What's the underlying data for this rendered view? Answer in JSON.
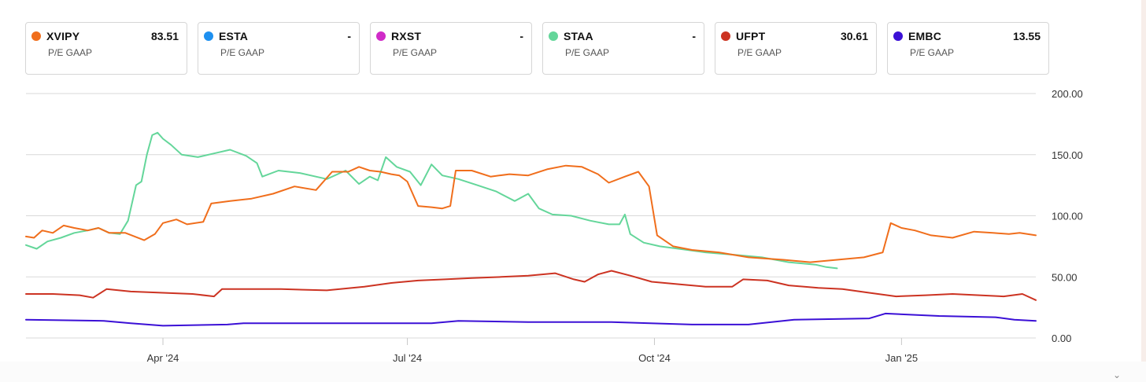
{
  "legend": [
    {
      "ticker": "XVIPY",
      "value": "83.51",
      "metric": "P/E GAAP",
      "color": "#f06e1c"
    },
    {
      "ticker": "ESTA",
      "value": "-",
      "metric": "P/E GAAP",
      "color": "#1e90f0"
    },
    {
      "ticker": "RXST",
      "value": "-",
      "metric": "P/E GAAP",
      "color": "#d02bc8"
    },
    {
      "ticker": "STAA",
      "value": "-",
      "metric": "P/E GAAP",
      "color": "#64d69a"
    },
    {
      "ticker": "UFPT",
      "value": "30.61",
      "metric": "P/E GAAP",
      "color": "#cc3322"
    },
    {
      "ticker": "EMBC",
      "value": "13.55",
      "metric": "P/E GAAP",
      "color": "#3b10d6"
    }
  ],
  "chart_data": {
    "type": "line",
    "x_range": [
      "2024-02-10",
      "2025-02-20"
    ],
    "ylim": [
      0,
      200
    ],
    "y_ticks": [
      "200.00",
      "150.00",
      "100.00",
      "50.00",
      "0.00"
    ],
    "x_ticks": [
      {
        "label": "Apr '24",
        "date": "2024-04-01"
      },
      {
        "label": "Jul '24",
        "date": "2024-07-01"
      },
      {
        "label": "Oct '24",
        "date": "2024-10-01"
      },
      {
        "label": "Jan '25",
        "date": "2025-01-01"
      }
    ],
    "grid": true,
    "series": [
      {
        "name": "STAA",
        "color": "#64d69a",
        "points": [
          [
            "2024-02-10",
            76
          ],
          [
            "2024-02-14",
            73
          ],
          [
            "2024-02-18",
            79
          ],
          [
            "2024-02-23",
            82
          ],
          [
            "2024-02-28",
            86
          ],
          [
            "2024-03-04",
            88
          ],
          [
            "2024-03-08",
            90
          ],
          [
            "2024-03-12",
            86
          ],
          [
            "2024-03-16",
            85
          ],
          [
            "2024-03-19",
            96
          ],
          [
            "2024-03-22",
            125
          ],
          [
            "2024-03-24",
            128
          ],
          [
            "2024-03-26",
            150
          ],
          [
            "2024-03-28",
            166
          ],
          [
            "2024-03-30",
            168
          ],
          [
            "2024-04-01",
            163
          ],
          [
            "2024-04-04",
            158
          ],
          [
            "2024-04-08",
            150
          ],
          [
            "2024-04-14",
            148
          ],
          [
            "2024-04-20",
            151
          ],
          [
            "2024-04-26",
            154
          ],
          [
            "2024-05-02",
            149
          ],
          [
            "2024-05-06",
            143
          ],
          [
            "2024-05-08",
            132
          ],
          [
            "2024-05-14",
            137
          ],
          [
            "2024-05-22",
            135
          ],
          [
            "2024-06-01",
            130
          ],
          [
            "2024-06-08",
            137
          ],
          [
            "2024-06-13",
            126
          ],
          [
            "2024-06-17",
            132
          ],
          [
            "2024-06-20",
            129
          ],
          [
            "2024-06-23",
            148
          ],
          [
            "2024-06-27",
            140
          ],
          [
            "2024-07-02",
            136
          ],
          [
            "2024-07-06",
            125
          ],
          [
            "2024-07-10",
            142
          ],
          [
            "2024-07-14",
            133
          ],
          [
            "2024-07-20",
            130
          ],
          [
            "2024-07-27",
            125
          ],
          [
            "2024-08-03",
            120
          ],
          [
            "2024-08-10",
            112
          ],
          [
            "2024-08-15",
            118
          ],
          [
            "2024-08-19",
            106
          ],
          [
            "2024-08-24",
            101
          ],
          [
            "2024-08-31",
            100
          ],
          [
            "2024-09-07",
            96
          ],
          [
            "2024-09-14",
            93
          ],
          [
            "2024-09-18",
            93
          ],
          [
            "2024-09-20",
            101
          ],
          [
            "2024-09-22",
            85
          ],
          [
            "2024-09-27",
            78
          ],
          [
            "2024-10-03",
            75
          ],
          [
            "2024-10-10",
            73
          ],
          [
            "2024-10-20",
            70
          ],
          [
            "2024-10-31",
            68
          ],
          [
            "2024-11-10",
            66
          ],
          [
            "2024-11-20",
            62
          ],
          [
            "2024-11-30",
            60
          ],
          [
            "2024-12-04",
            58
          ],
          [
            "2024-12-08",
            57
          ]
        ]
      },
      {
        "name": "XVIPY",
        "color": "#f06e1c",
        "points": [
          [
            "2024-02-10",
            83
          ],
          [
            "2024-02-13",
            82
          ],
          [
            "2024-02-16",
            88
          ],
          [
            "2024-02-20",
            86
          ],
          [
            "2024-02-24",
            92
          ],
          [
            "2024-02-28",
            90
          ],
          [
            "2024-03-04",
            88
          ],
          [
            "2024-03-08",
            90
          ],
          [
            "2024-03-12",
            86
          ],
          [
            "2024-03-18",
            86
          ],
          [
            "2024-03-25",
            80
          ],
          [
            "2024-03-29",
            85
          ],
          [
            "2024-04-01",
            94
          ],
          [
            "2024-04-06",
            97
          ],
          [
            "2024-04-10",
            93
          ],
          [
            "2024-04-16",
            95
          ],
          [
            "2024-04-19",
            110
          ],
          [
            "2024-04-26",
            112
          ],
          [
            "2024-05-04",
            114
          ],
          [
            "2024-05-12",
            118
          ],
          [
            "2024-05-20",
            124
          ],
          [
            "2024-05-28",
            121
          ],
          [
            "2024-06-03",
            136
          ],
          [
            "2024-06-09",
            136
          ],
          [
            "2024-06-13",
            140
          ],
          [
            "2024-06-17",
            137
          ],
          [
            "2024-06-21",
            136
          ],
          [
            "2024-06-25",
            134
          ],
          [
            "2024-06-28",
            133
          ],
          [
            "2024-07-01",
            128
          ],
          [
            "2024-07-05",
            108
          ],
          [
            "2024-07-10",
            107
          ],
          [
            "2024-07-14",
            106
          ],
          [
            "2024-07-17",
            108
          ],
          [
            "2024-07-19",
            137
          ],
          [
            "2024-07-25",
            137
          ],
          [
            "2024-08-01",
            132
          ],
          [
            "2024-08-08",
            134
          ],
          [
            "2024-08-15",
            133
          ],
          [
            "2024-08-22",
            138
          ],
          [
            "2024-08-29",
            141
          ],
          [
            "2024-09-04",
            140
          ],
          [
            "2024-09-10",
            134
          ],
          [
            "2024-09-14",
            127
          ],
          [
            "2024-09-20",
            132
          ],
          [
            "2024-09-25",
            136
          ],
          [
            "2024-09-29",
            124
          ],
          [
            "2024-10-02",
            84
          ],
          [
            "2024-10-08",
            75
          ],
          [
            "2024-10-15",
            72
          ],
          [
            "2024-10-25",
            70
          ],
          [
            "2024-11-05",
            66
          ],
          [
            "2024-11-18",
            64
          ],
          [
            "2024-11-28",
            62
          ],
          [
            "2024-12-08",
            64
          ],
          [
            "2024-12-18",
            66
          ],
          [
            "2024-12-25",
            70
          ],
          [
            "2024-12-28",
            94
          ],
          [
            "2025-01-01",
            90
          ],
          [
            "2025-01-06",
            88
          ],
          [
            "2025-01-12",
            84
          ],
          [
            "2025-01-20",
            82
          ],
          [
            "2025-01-28",
            87
          ],
          [
            "2025-02-04",
            86
          ],
          [
            "2025-02-10",
            85
          ],
          [
            "2025-02-14",
            86
          ],
          [
            "2025-02-20",
            84
          ]
        ]
      },
      {
        "name": "UFPT",
        "color": "#cc3322",
        "points": [
          [
            "2024-02-10",
            36
          ],
          [
            "2024-02-20",
            36
          ],
          [
            "2024-03-01",
            35
          ],
          [
            "2024-03-06",
            33
          ],
          [
            "2024-03-11",
            40
          ],
          [
            "2024-03-20",
            38
          ],
          [
            "2024-04-01",
            37
          ],
          [
            "2024-04-12",
            36
          ],
          [
            "2024-04-20",
            34
          ],
          [
            "2024-04-23",
            40
          ],
          [
            "2024-05-01",
            40
          ],
          [
            "2024-05-15",
            40
          ],
          [
            "2024-06-01",
            39
          ],
          [
            "2024-06-15",
            42
          ],
          [
            "2024-06-25",
            45
          ],
          [
            "2024-07-05",
            47
          ],
          [
            "2024-07-15",
            48
          ],
          [
            "2024-07-25",
            49
          ],
          [
            "2024-08-05",
            50
          ],
          [
            "2024-08-15",
            51
          ],
          [
            "2024-08-25",
            53
          ],
          [
            "2024-09-01",
            48
          ],
          [
            "2024-09-05",
            46
          ],
          [
            "2024-09-10",
            52
          ],
          [
            "2024-09-15",
            55
          ],
          [
            "2024-09-22",
            51
          ],
          [
            "2024-09-30",
            46
          ],
          [
            "2024-10-10",
            44
          ],
          [
            "2024-10-20",
            42
          ],
          [
            "2024-10-30",
            42
          ],
          [
            "2024-11-03",
            48
          ],
          [
            "2024-11-12",
            47
          ],
          [
            "2024-11-20",
            43
          ],
          [
            "2024-12-01",
            41
          ],
          [
            "2024-12-10",
            40
          ],
          [
            "2024-12-20",
            37
          ],
          [
            "2024-12-30",
            34
          ],
          [
            "2025-01-10",
            35
          ],
          [
            "2025-01-20",
            36
          ],
          [
            "2025-01-30",
            35
          ],
          [
            "2025-02-08",
            34
          ],
          [
            "2025-02-15",
            36
          ],
          [
            "2025-02-20",
            31
          ]
        ]
      },
      {
        "name": "EMBC",
        "color": "#3b10d6",
        "points": [
          [
            "2024-02-10",
            15
          ],
          [
            "2024-03-10",
            14
          ],
          [
            "2024-03-20",
            12
          ],
          [
            "2024-04-01",
            10
          ],
          [
            "2024-04-25",
            11
          ],
          [
            "2024-05-01",
            12
          ],
          [
            "2024-06-01",
            12
          ],
          [
            "2024-07-10",
            12
          ],
          [
            "2024-07-20",
            14
          ],
          [
            "2024-08-15",
            13
          ],
          [
            "2024-09-15",
            13
          ],
          [
            "2024-10-15",
            11
          ],
          [
            "2024-11-05",
            11
          ],
          [
            "2024-11-22",
            15
          ],
          [
            "2024-12-20",
            16
          ],
          [
            "2024-12-26",
            20
          ],
          [
            "2025-01-15",
            18
          ],
          [
            "2025-02-05",
            17
          ],
          [
            "2025-02-12",
            15
          ],
          [
            "2025-02-20",
            14
          ]
        ]
      }
    ]
  }
}
